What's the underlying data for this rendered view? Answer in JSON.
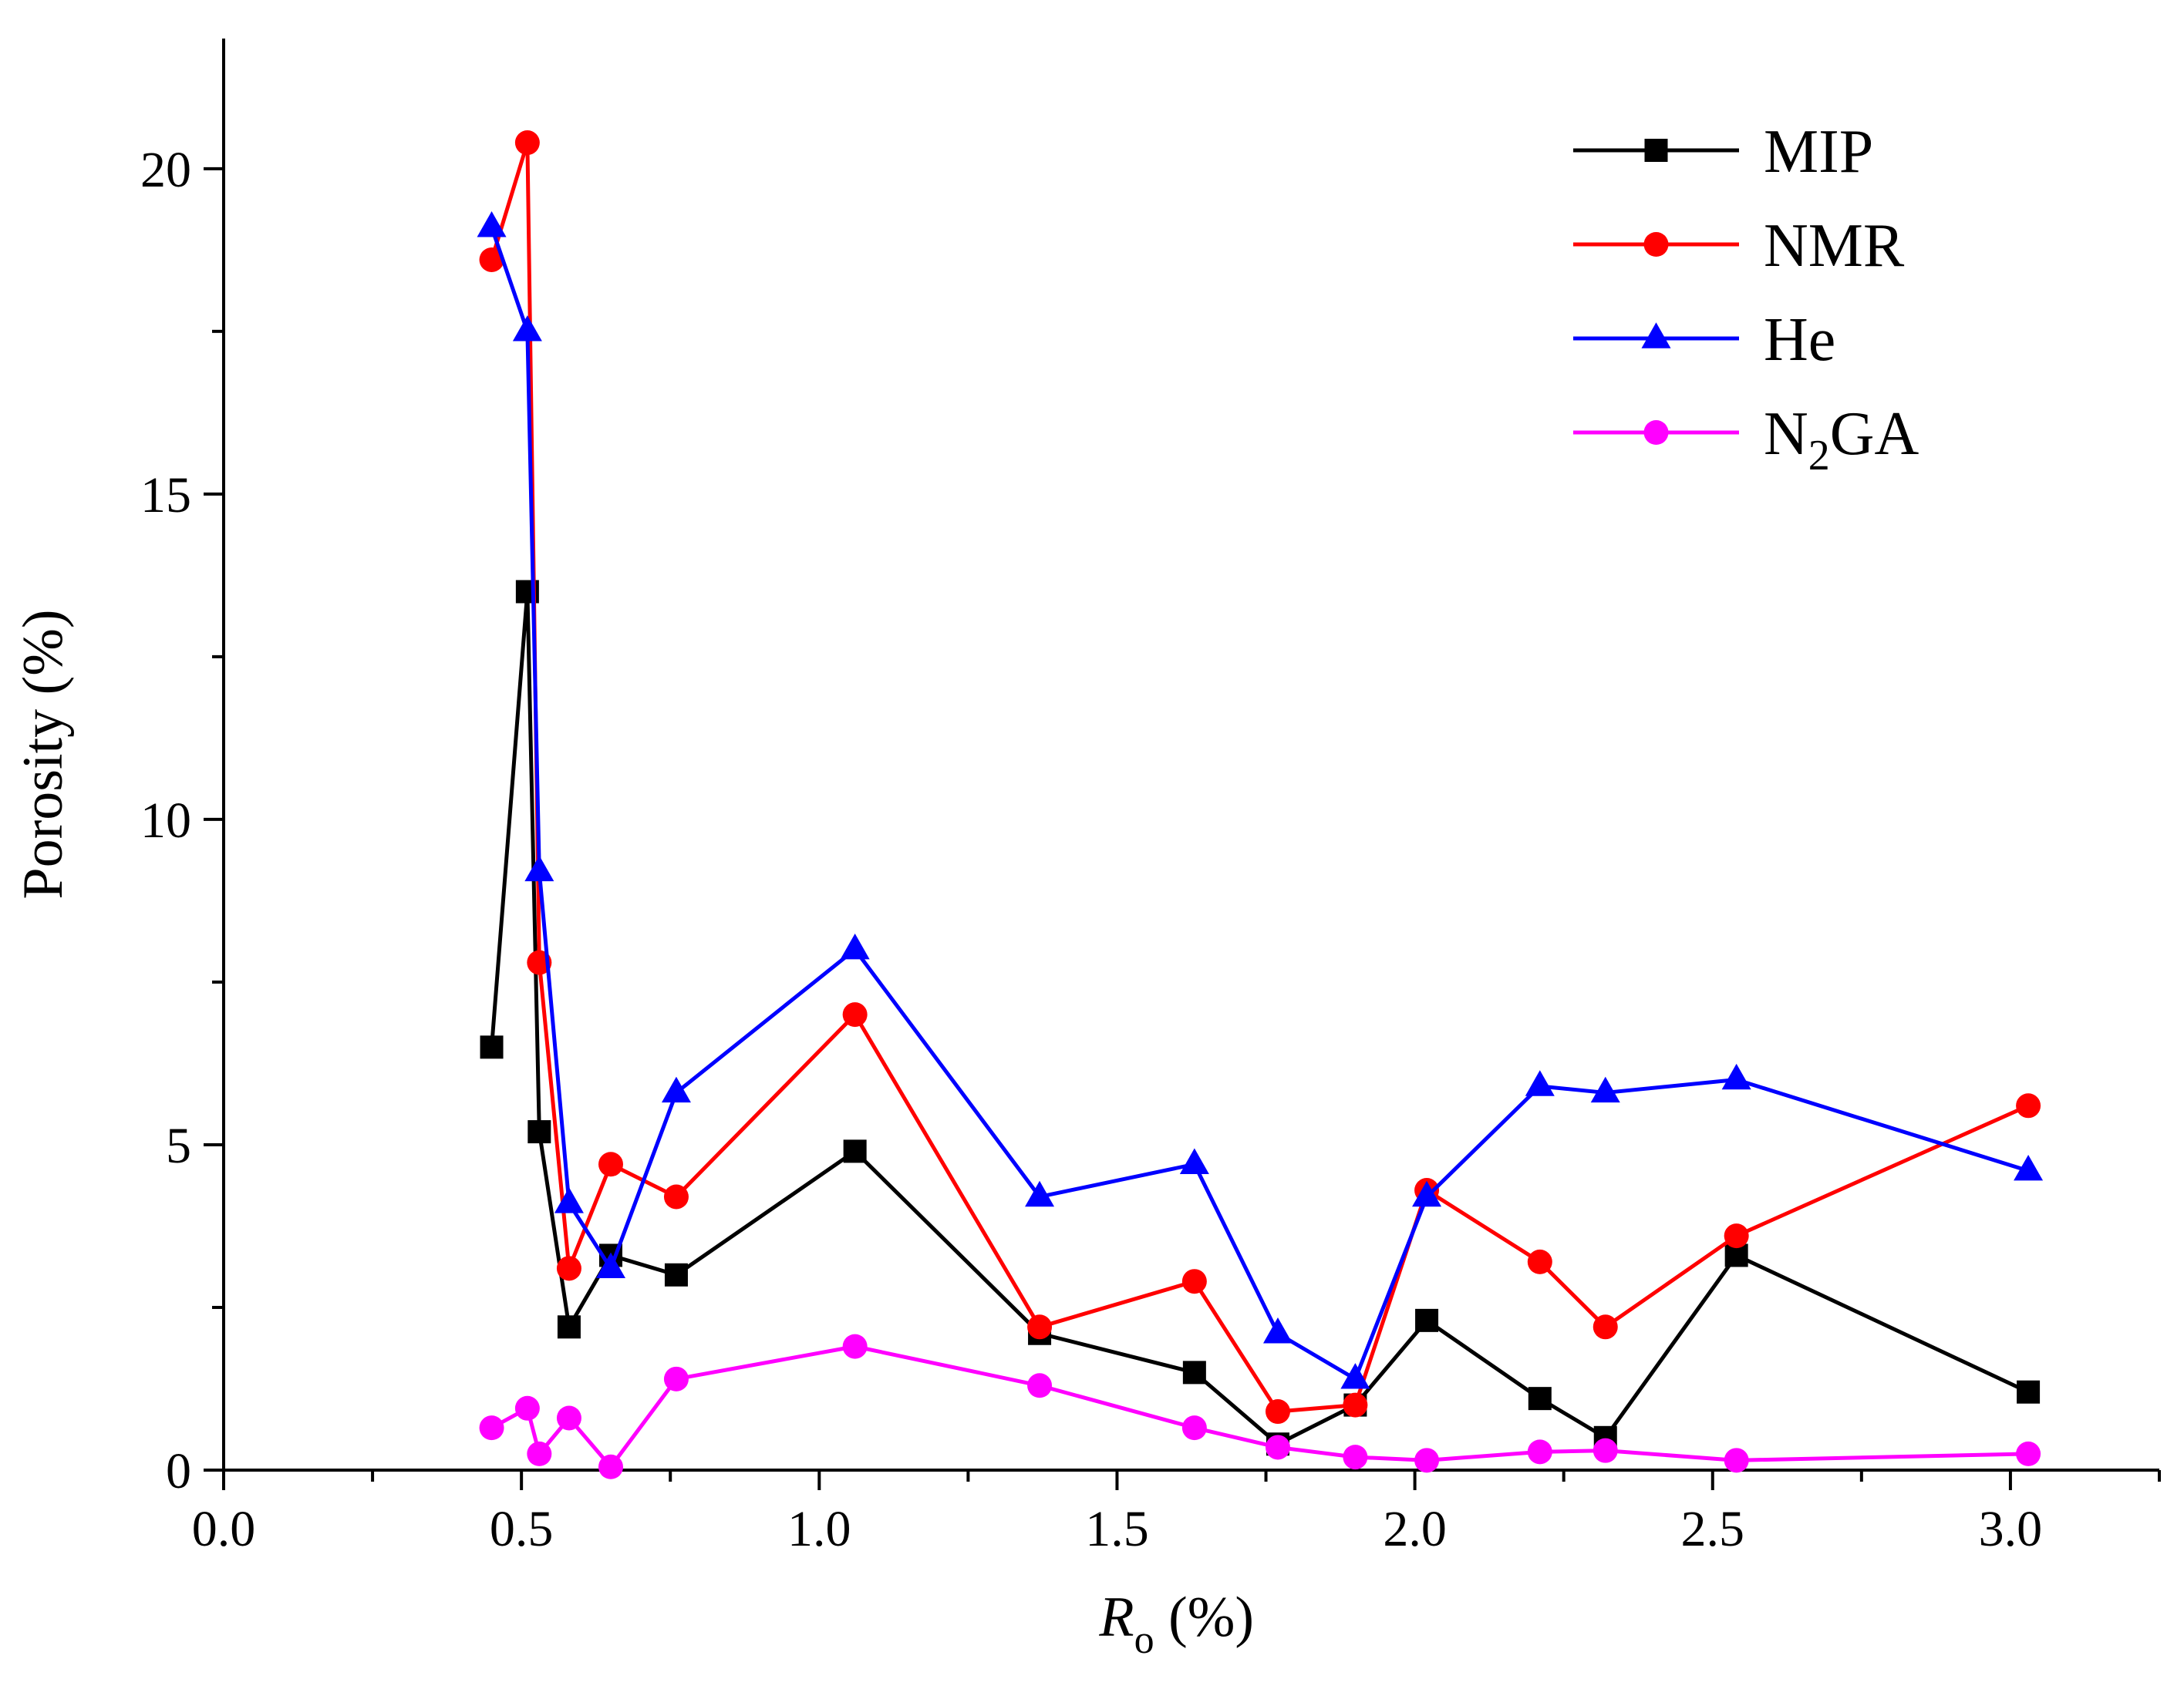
{
  "chart_data": {
    "type": "line",
    "title": "",
    "xlabel_main": "R",
    "xlabel_sub": "o",
    "xlabel_unit": " (%)",
    "ylabel": "Porosity (%)",
    "xlim": [
      0.0,
      3.25
    ],
    "ylim": [
      0,
      22
    ],
    "xticks": [
      0.0,
      0.5,
      1.0,
      1.5,
      2.0,
      2.5,
      3.0
    ],
    "xtick_labels": [
      "0.0",
      "0.5",
      "1.0",
      "1.5",
      "2.0",
      "2.5",
      "3.0"
    ],
    "yticks": [
      0,
      5,
      10,
      15,
      20
    ],
    "ytick_labels": [
      "0",
      "5",
      "10",
      "15",
      "20"
    ],
    "legend_position": "top-right",
    "series": [
      {
        "name": "MIP",
        "name_main": "MIP",
        "name_sub": "",
        "name_rest": "",
        "color": "#000000",
        "marker": "square",
        "x": [
          0.45,
          0.51,
          0.53,
          0.58,
          0.65,
          0.76,
          1.06,
          1.37,
          1.63,
          1.77,
          1.9,
          2.02,
          2.21,
          2.32,
          2.54,
          3.03
        ],
        "y": [
          6.5,
          13.5,
          5.2,
          2.2,
          3.3,
          3.0,
          4.9,
          2.1,
          1.5,
          0.4,
          1.0,
          2.3,
          1.1,
          0.5,
          3.3,
          1.2
        ]
      },
      {
        "name": "NMR",
        "name_main": "NMR",
        "name_sub": "",
        "name_rest": "",
        "color": "#ff0000",
        "marker": "circle",
        "x": [
          0.45,
          0.51,
          0.53,
          0.58,
          0.65,
          0.76,
          1.06,
          1.37,
          1.63,
          1.77,
          1.9,
          2.02,
          2.21,
          2.32,
          2.54,
          3.03
        ],
        "y": [
          18.6,
          20.4,
          7.8,
          3.1,
          4.7,
          4.2,
          7.0,
          2.2,
          2.9,
          0.9,
          1.0,
          4.3,
          3.2,
          2.2,
          3.6,
          5.6
        ]
      },
      {
        "name": "He",
        "name_main": "He",
        "name_sub": "",
        "name_rest": "",
        "color": "#0000ff",
        "marker": "triangle",
        "x": [
          0.45,
          0.51,
          0.53,
          0.58,
          0.65,
          0.76,
          1.06,
          1.37,
          1.63,
          1.77,
          1.9,
          2.02,
          2.21,
          2.32,
          2.54,
          3.03
        ],
        "y": [
          19.1,
          17.5,
          9.2,
          4.1,
          3.1,
          5.8,
          8.0,
          4.2,
          4.7,
          2.1,
          1.4,
          4.2,
          5.9,
          5.8,
          6.0,
          4.6
        ]
      },
      {
        "name": "N2GA",
        "name_main": "N",
        "name_sub": "2",
        "name_rest": "GA",
        "color": "#ff00ff",
        "marker": "circle",
        "x": [
          0.45,
          0.51,
          0.53,
          0.58,
          0.65,
          0.76,
          1.06,
          1.37,
          1.63,
          1.77,
          1.9,
          2.02,
          2.21,
          2.32,
          2.54,
          3.03
        ],
        "y": [
          0.65,
          0.95,
          0.25,
          0.8,
          0.05,
          1.4,
          1.9,
          1.3,
          0.65,
          0.35,
          0.2,
          0.15,
          0.28,
          0.3,
          0.15,
          0.25
        ]
      }
    ]
  }
}
